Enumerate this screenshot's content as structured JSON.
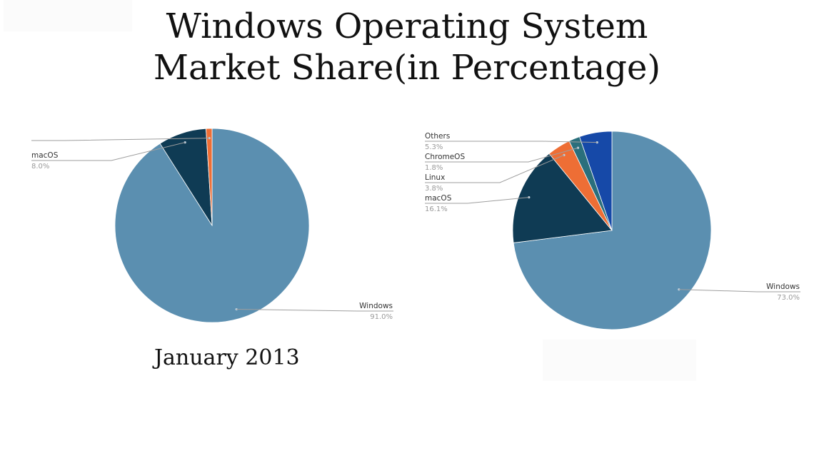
{
  "title": {
    "line1": "Windows Operating System",
    "line2": "Market Share(in Percentage)"
  },
  "chart_data": [
    {
      "type": "pie",
      "caption": "January 2013",
      "slices": [
        {
          "label": "Windows",
          "value": 91.0,
          "value_label": "91.0%",
          "color": "#5b8fb0"
        },
        {
          "label": "macOS",
          "value": 8.0,
          "value_label": "8.0%",
          "color": "#0f3b54"
        },
        {
          "label": "",
          "value": 1.0,
          "value_label": "",
          "color": "#ee6e35"
        }
      ]
    },
    {
      "type": "pie",
      "caption": "",
      "slices": [
        {
          "label": "Windows",
          "value": 73.0,
          "value_label": "73.0%",
          "color": "#5b8fb0"
        },
        {
          "label": "macOS",
          "value": 16.1,
          "value_label": "16.1%",
          "color": "#0f3b54"
        },
        {
          "label": "Linux",
          "value": 3.8,
          "value_label": "3.8%",
          "color": "#ee6e35"
        },
        {
          "label": "ChromeOS",
          "value": 1.8,
          "value_label": "1.8%",
          "color": "#2a6f7c"
        },
        {
          "label": "Others",
          "value": 5.3,
          "value_label": "5.3%",
          "color": "#1649a8"
        }
      ]
    }
  ]
}
